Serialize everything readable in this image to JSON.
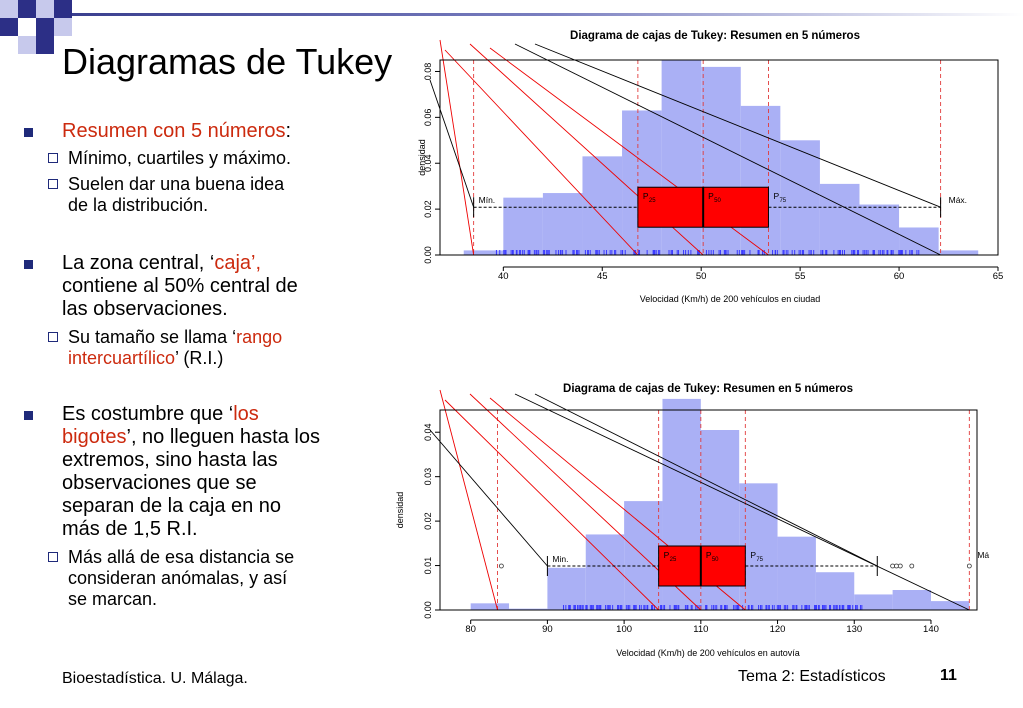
{
  "slide": {
    "title": "Diagramas de Tukey",
    "footer_left": "Bioestadística. U. Málaga.",
    "footer_right": "Tema 2: Estadísticos",
    "page_number": "11"
  },
  "bullets": {
    "b1": {
      "text": "Resumen con 5 números",
      "suffix": ":"
    },
    "b1_sub1": "Mínimo, cuartiles y máximo.",
    "b1_sub2a": "Suelen dar una buena idea",
    "b1_sub2b": "de la distribución.",
    "b2_pre": "La zona central, ‘",
    "b2_red": "caja’,",
    "b2_l2": "contiene al 50% central de",
    "b2_l3": "las observaciones.",
    "b2_sub_pre": "Su tamaño se llama ‘",
    "b2_sub_red1": "rango",
    "b2_sub_red2": "intercuartílico",
    "b2_sub_post": "’ (R.I.)",
    "b3_pre": "Es costumbre que ‘",
    "b3_red1": "los",
    "b3_red2": "bigotes",
    "b3_l2rest": "’, no lleguen hasta los",
    "b3_l3": "extremos, sino hasta las",
    "b3_l4": "observaciones que se",
    "b3_l5": "separan de la caja en no",
    "b3_l6": "más de 1,5 R.I.",
    "b3_sub1": "Más allá de esa distancia se",
    "b3_sub2": "consideran anómalas, y así",
    "b3_sub3": "se marcan."
  },
  "chart_data": [
    {
      "type": "histogram-boxplot",
      "title": "Diagrama de cajas de Tukey: Resumen en 5 números",
      "xlabel": "Velocidad (Km/h) de 200 vehículos en ciudad",
      "ylabel": "densidad",
      "xlim": [
        36.8,
        65
      ],
      "ylim": [
        0,
        0.085
      ],
      "xticks": [
        "40",
        "45",
        "50",
        "55",
        "60",
        "65"
      ],
      "yticks": [
        "0.00",
        "0.02",
        "0.04",
        "0.06",
        "0.08"
      ],
      "bins": [
        [
          38,
          40,
          0.002
        ],
        [
          40,
          42,
          0.025
        ],
        [
          42,
          44,
          0.027
        ],
        [
          44,
          46,
          0.043
        ],
        [
          46,
          48,
          0.063
        ],
        [
          48,
          50,
          0.085
        ],
        [
          50,
          52,
          0.082
        ],
        [
          52,
          54,
          0.065
        ],
        [
          54,
          56,
          0.05
        ],
        [
          56,
          58,
          0.031
        ],
        [
          58,
          60,
          0.022
        ],
        [
          60,
          62,
          0.012
        ],
        [
          62,
          64,
          0.002
        ]
      ],
      "five_numbers": {
        "min": 38.5,
        "p25": 46.8,
        "p50": 50.1,
        "p75": 53.4,
        "max": 62.1
      },
      "labels": {
        "min": "Mín.",
        "p25": "P",
        "p25_sub": "25",
        "p50": "P",
        "p50_sub": "50",
        "p75": "P",
        "p75_sub": "75",
        "max": "Máx."
      },
      "outliers": []
    },
    {
      "type": "histogram-boxplot",
      "title": "Diagrama de cajas de Tukey: Resumen en 5 números",
      "xlabel": "Velocidad (Km/h) de 200 vehículos en autovía",
      "ylabel": "densidad",
      "xlim": [
        76,
        146
      ],
      "ylim": [
        0,
        0.045
      ],
      "xticks": [
        "80",
        "90",
        "100",
        "110",
        "120",
        "130",
        "140"
      ],
      "yticks": [
        "0.00",
        "0.01",
        "0.02",
        "0.03",
        "0.04"
      ],
      "bins": [
        [
          80,
          85,
          0.0015
        ],
        [
          85,
          90,
          0.0003
        ],
        [
          90,
          95,
          0.0095
        ],
        [
          95,
          100,
          0.017
        ],
        [
          100,
          105,
          0.0245
        ],
        [
          105,
          110,
          0.0475
        ],
        [
          110,
          115,
          0.0405
        ],
        [
          115,
          120,
          0.0285
        ],
        [
          120,
          125,
          0.0165
        ],
        [
          125,
          130,
          0.0085
        ],
        [
          130,
          135,
          0.0035
        ],
        [
          135,
          140,
          0.0045
        ],
        [
          140,
          145,
          0.002
        ]
      ],
      "five_numbers": {
        "min": 90,
        "p25": 104.5,
        "p50": 110,
        "p75": 115.8,
        "max": 133
      },
      "extremes": {
        "low": 83.5,
        "high": 145
      },
      "labels": {
        "min": "Min.",
        "p25": "P",
        "p25_sub": "25",
        "p50": "P",
        "p50_sub": "50",
        "p75": "P",
        "p75_sub": "75",
        "max": "Má"
      },
      "outliers": [
        84,
        135,
        135.5,
        136,
        137.5,
        145
      ]
    }
  ]
}
